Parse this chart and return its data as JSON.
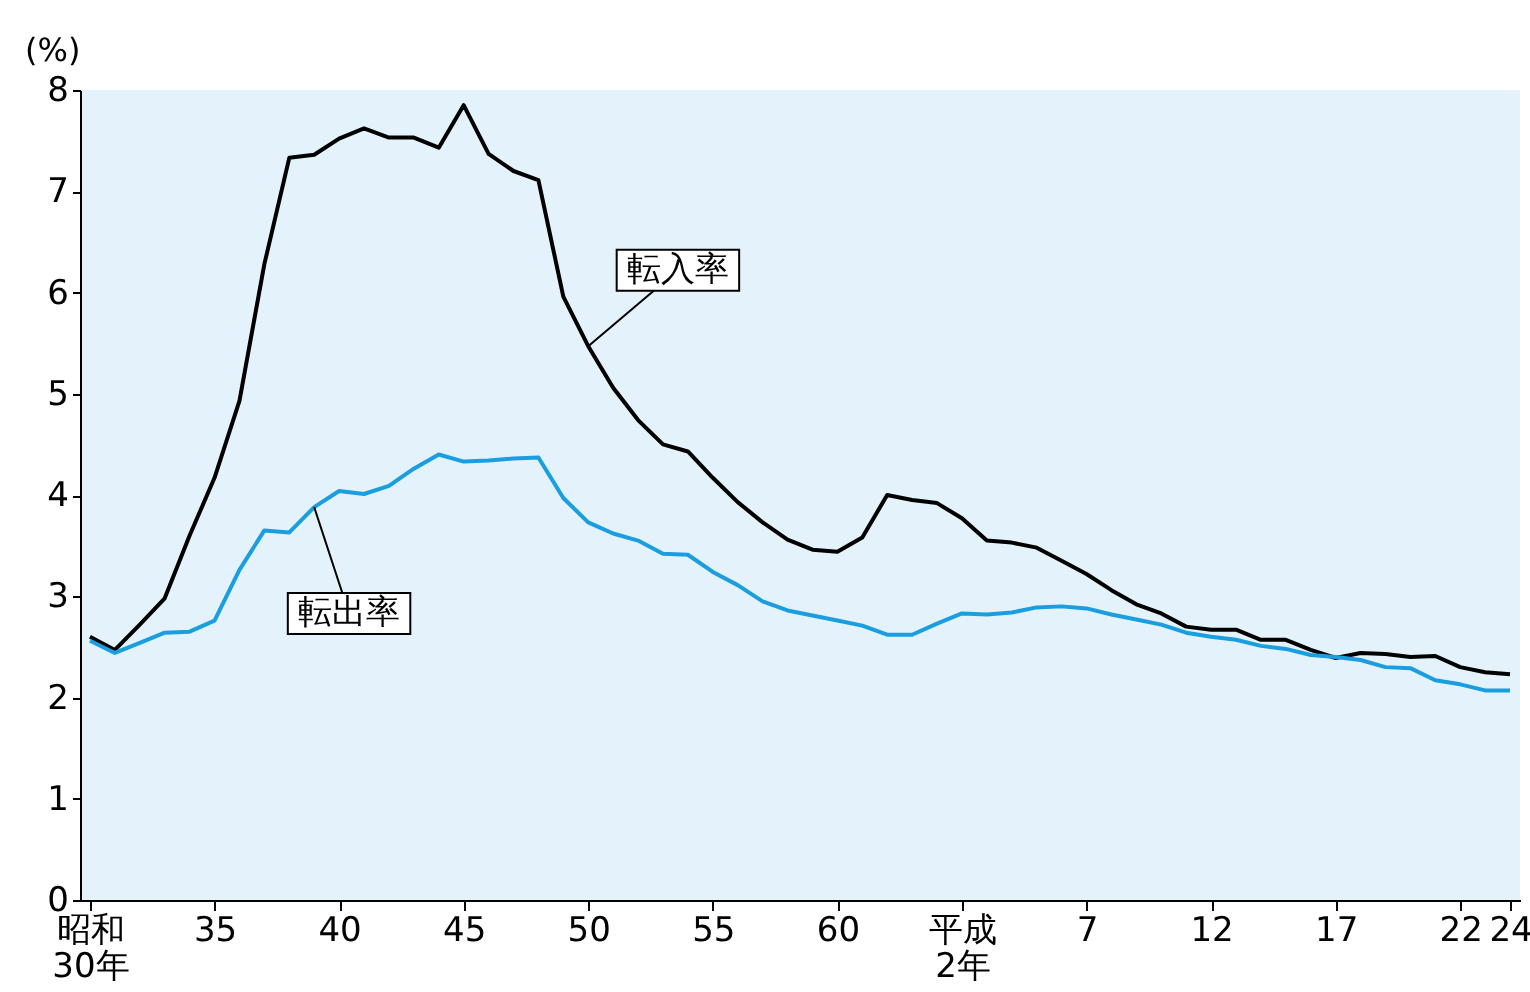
{
  "chart_data": {
    "type": "line",
    "ylabel": "(%)",
    "categories": [
      "昭和\n30年",
      null,
      null,
      null,
      null,
      "35",
      null,
      null,
      null,
      null,
      "40",
      null,
      null,
      null,
      null,
      "45",
      null,
      null,
      null,
      null,
      "50",
      null,
      null,
      null,
      null,
      "55",
      null,
      null,
      null,
      null,
      "60",
      null,
      null,
      null,
      null,
      "平成\n2年",
      null,
      null,
      null,
      null,
      "7",
      null,
      null,
      null,
      null,
      "12",
      null,
      null,
      null,
      null,
      "17",
      null,
      null,
      null,
      null,
      "22",
      null,
      "24"
    ],
    "series": [
      {
        "name": "転入率",
        "color": "#000000",
        "values": [
          2.6,
          2.47,
          2.72,
          2.98,
          3.6,
          4.17,
          4.93,
          6.28,
          7.33,
          7.36,
          7.52,
          7.62,
          7.53,
          7.53,
          7.43,
          7.85,
          7.37,
          7.2,
          7.11,
          5.96,
          5.47,
          5.06,
          4.74,
          4.5,
          4.43,
          4.17,
          3.93,
          3.73,
          3.56,
          3.46,
          3.44,
          3.58,
          4.0,
          3.95,
          3.92,
          3.77,
          3.55,
          3.53,
          3.48,
          3.35,
          3.22,
          3.06,
          2.92,
          2.83,
          2.7,
          2.67,
          2.67,
          2.57,
          2.57,
          2.47,
          2.39,
          2.44,
          2.43,
          2.4,
          2.41,
          2.3,
          2.25,
          2.23
        ]
      },
      {
        "name": "転出率",
        "color": "#1a9ee0",
        "values": [
          2.56,
          2.44,
          2.54,
          2.64,
          2.65,
          2.76,
          3.26,
          3.65,
          3.63,
          3.88,
          4.04,
          4.01,
          4.09,
          4.26,
          4.4,
          4.33,
          4.34,
          4.36,
          4.37,
          3.97,
          3.73,
          3.62,
          3.55,
          3.42,
          3.41,
          3.24,
          3.11,
          2.95,
          2.86,
          2.81,
          2.76,
          2.71,
          2.62,
          2.62,
          2.73,
          2.83,
          2.82,
          2.84,
          2.89,
          2.9,
          2.88,
          2.82,
          2.77,
          2.72,
          2.64,
          2.6,
          2.57,
          2.51,
          2.48,
          2.42,
          2.4,
          2.37,
          2.3,
          2.29,
          2.17,
          2.13,
          2.07,
          2.07
        ]
      }
    ],
    "ylim": [
      0,
      8
    ],
    "yticks": [
      0,
      1,
      2,
      3,
      4,
      5,
      6,
      7,
      8
    ],
    "grid": false,
    "legend": false,
    "line_style": "solid",
    "marker": "none"
  }
}
